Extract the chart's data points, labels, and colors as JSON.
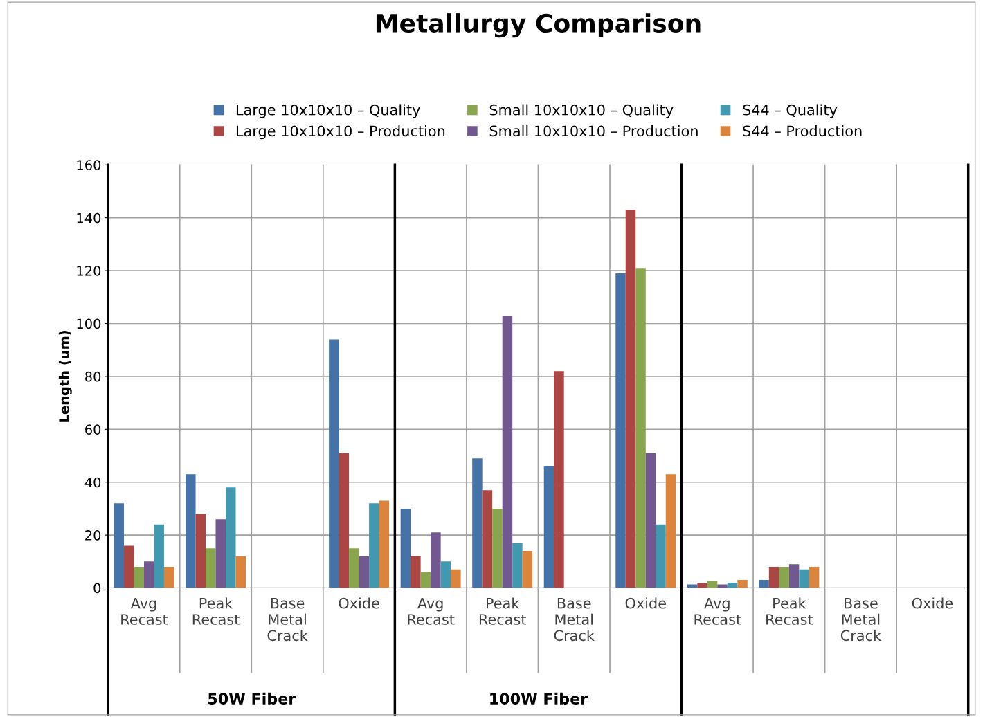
{
  "chart_data": {
    "type": "bar",
    "title": "Metallurgy Comparison",
    "ylabel": "Length (um)",
    "categories": [
      "Avg\nRecast",
      "Peak\nRecast",
      "Base\nMetal\nCrack",
      "Oxide",
      "Avg\nRecast",
      "Peak\nRecast",
      "Base\nMetal\nCrack",
      "Oxide",
      "Avg\nRecast",
      "Peak\nRecast",
      "Base\nMetal\nCrack",
      "Oxide"
    ],
    "series": [
      {
        "name": "Large 10x10x10 – Quality",
        "color": "#4572a7",
        "values": [
          32,
          43,
          null,
          94,
          30,
          49,
          46,
          119,
          1.3,
          3,
          null,
          null
        ]
      },
      {
        "name": "Large 10x10x10 – Production",
        "color": "#aa4643",
        "values": [
          16,
          28,
          null,
          51,
          12,
          37,
          82,
          143,
          1.8,
          8,
          null,
          null
        ]
      },
      {
        "name": "Small 10x10x10 – Quality",
        "color": "#89a54e",
        "values": [
          8,
          15,
          null,
          15,
          6,
          30,
          null,
          121,
          2.5,
          8,
          null,
          null
        ]
      },
      {
        "name": "Small 10x10x10 – Production",
        "color": "#71588f",
        "values": [
          10,
          26,
          null,
          12,
          21,
          103,
          null,
          51,
          1.3,
          9,
          null,
          null
        ]
      },
      {
        "name": "S44 – Quality",
        "color": "#4198af",
        "values": [
          24,
          38,
          null,
          32,
          10,
          17,
          null,
          24,
          2,
          7,
          null,
          null
        ]
      },
      {
        "name": "S44 – Production",
        "color": "#db843d",
        "values": [
          8,
          12,
          null,
          33,
          7,
          14,
          null,
          43,
          3,
          8,
          null,
          null
        ]
      }
    ],
    "ylim": [
      0,
      160
    ],
    "yticks": [
      0,
      20,
      40,
      60,
      80,
      100,
      120,
      140,
      160
    ],
    "grid": true,
    "legend": "top",
    "annotations": [
      "50W Fiber",
      "100W Fiber"
    ]
  }
}
